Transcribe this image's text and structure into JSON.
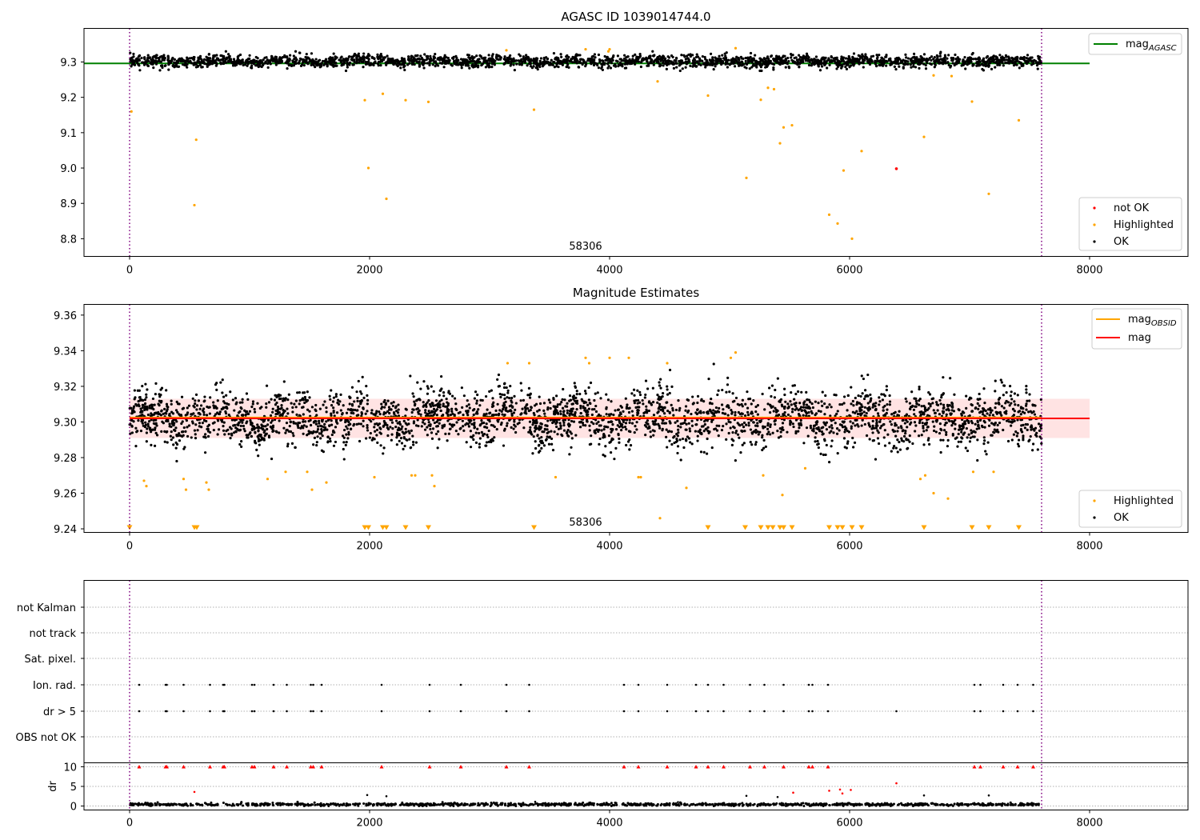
{
  "chart_data": [
    {
      "type": "scatter",
      "title": "AGASC ID 1039014744.0",
      "annotation": "58306",
      "xlim": [
        -380,
        8820
      ],
      "ylim": [
        8.75,
        9.395
      ],
      "xticks": [
        "0",
        "2000",
        "4000",
        "6000",
        "8000"
      ],
      "yticks": [
        "8.8",
        "8.9",
        "9.0",
        "9.1",
        "9.2",
        "9.3"
      ],
      "vlines_x": [
        0,
        7600
      ],
      "series": [
        {
          "name": "mag_AGASC",
          "kind": "line",
          "color": "#008000",
          "y": 9.296,
          "x_range": [
            -380,
            8000
          ]
        },
        {
          "name": "not OK",
          "kind": "points",
          "color": "#ff0000",
          "x": [
            6390
          ],
          "y": [
            8.998
          ]
        },
        {
          "name": "Highlighted",
          "kind": "points",
          "color": "#ffa500",
          "x": [
            15,
            540,
            555,
            1960,
            1990,
            2110,
            2140,
            2300,
            2490,
            3370,
            4400,
            4820,
            5140,
            5260,
            5320,
            5370,
            5420,
            5450,
            5520,
            5830,
            5900,
            5950,
            6020,
            6100,
            6620,
            7020,
            7160,
            7410,
            3140,
            3800,
            4000,
            5050,
            3990,
            6850,
            6700
          ],
          "y": [
            9.16,
            8.895,
            9.08,
            9.192,
            9.0,
            9.21,
            8.913,
            9.192,
            9.187,
            9.165,
            9.245,
            9.205,
            8.972,
            9.193,
            9.227,
            9.223,
            9.07,
            9.115,
            9.121,
            8.868,
            8.843,
            8.993,
            8.8,
            9.048,
            9.088,
            9.188,
            8.927,
            9.135,
            9.333,
            9.336,
            9.336,
            9.339,
            9.33,
            9.26,
            9.262
          ]
        },
        {
          "name": "OK",
          "kind": "points",
          "color": "#000000",
          "x_range": [
            0,
            7600
          ],
          "y_center": 9.302,
          "y_band": [
            9.275,
            9.33
          ]
        }
      ],
      "legend": [
        {
          "text": "mag",
          "sub": "AGASC",
          "color": "#008000",
          "marker": "line"
        },
        {
          "text": "not OK",
          "color": "#ff0000",
          "marker": "dot"
        },
        {
          "text": "Highlighted",
          "color": "#ffa500",
          "marker": "dot"
        },
        {
          "text": "OK",
          "color": "#000000",
          "marker": "dot"
        }
      ]
    },
    {
      "type": "scatter",
      "title": "Magnitude Estimates",
      "annotation": "58306",
      "xlim": [
        -380,
        8820
      ],
      "ylim": [
        9.238,
        9.366
      ],
      "xticks": [
        "0",
        "2000",
        "4000",
        "6000",
        "8000"
      ],
      "yticks": [
        "9.24",
        "9.26",
        "9.28",
        "9.30",
        "9.32",
        "9.34",
        "9.36"
      ],
      "vlines_x": [
        0,
        7600
      ],
      "band": {
        "y_low": 9.291,
        "y_high": 9.313,
        "x_range": [
          0,
          8000
        ],
        "color": "#ff9999"
      },
      "series": [
        {
          "name": "mag_OBSID",
          "kind": "line",
          "color": "#ffa500",
          "y": 9.3025,
          "x_range": [
            0,
            7600
          ]
        },
        {
          "name": "mag",
          "kind": "line",
          "color": "#ff0000",
          "y": 9.302,
          "x_range": [
            0,
            8000
          ]
        },
        {
          "name": "Highlighted",
          "kind": "points",
          "color": "#ffa500",
          "x": [
            120,
            140,
            450,
            470,
            640,
            660,
            1150,
            1300,
            1480,
            1520,
            1640,
            2040,
            2350,
            2380,
            2520,
            2540,
            3150,
            3330,
            3550,
            3800,
            3830,
            4000,
            4160,
            4240,
            4420,
            4480,
            4640,
            5010,
            5050,
            5280,
            5440,
            5630,
            6590,
            6630,
            6700,
            6820,
            7030,
            7200,
            4260
          ],
          "y": [
            9.267,
            9.264,
            9.268,
            9.262,
            9.266,
            9.262,
            9.268,
            9.272,
            9.272,
            9.262,
            9.266,
            9.269,
            9.27,
            9.27,
            9.27,
            9.264,
            9.333,
            9.333,
            9.269,
            9.336,
            9.333,
            9.336,
            9.336,
            9.269,
            9.246,
            9.333,
            9.263,
            9.336,
            9.339,
            9.27,
            9.259,
            9.274,
            9.268,
            9.27,
            9.26,
            9.257,
            9.272,
            9.272,
            9.269
          ]
        },
        {
          "name": "OK",
          "kind": "points",
          "color": "#000000",
          "x_range": [
            0,
            7600
          ],
          "y_center": 9.302,
          "y_band": [
            9.272,
            9.333
          ]
        }
      ],
      "offscale_x": [
        0,
        540,
        560,
        1960,
        1990,
        2110,
        2140,
        2300,
        2490,
        3370,
        4820,
        5130,
        5260,
        5320,
        5360,
        5420,
        5450,
        5520,
        5830,
        5900,
        5940,
        6020,
        6100,
        6620,
        7020,
        7160,
        7410
      ],
      "legend_top": [
        {
          "text": "mag",
          "sub": "OBSID",
          "color": "#ffa500",
          "marker": "line"
        },
        {
          "text": "mag",
          "color": "#ff0000",
          "marker": "line"
        }
      ],
      "legend_bottom": [
        {
          "text": "Highlighted",
          "color": "#ffa500",
          "marker": "dot"
        },
        {
          "text": "OK",
          "color": "#000000",
          "marker": "dot"
        }
      ]
    },
    {
      "type": "scatter",
      "xlim": [
        -380,
        8820
      ],
      "xticks": [
        "0",
        "2000",
        "4000",
        "6000",
        "8000"
      ],
      "vlines_x": [
        0,
        7600
      ],
      "flag_rows": [
        "not Kalman",
        "not track",
        "Sat. pixel.",
        "Ion. rad.",
        "dr > 5",
        "OBS not OK"
      ],
      "flags": {
        "Ion. rad.": [
          80,
          300,
          310,
          450,
          670,
          780,
          790,
          1020,
          1040,
          1200,
          1310,
          1510,
          1530,
          1600,
          2100,
          2500,
          2760,
          3140,
          3330,
          4120,
          4240,
          4480,
          4720,
          4820,
          4950,
          5170,
          5290,
          5450,
          5660,
          5690,
          5820,
          7040,
          7090,
          7280,
          7400,
          7530
        ],
        "dr > 5": [
          80,
          300,
          310,
          450,
          670,
          780,
          790,
          1020,
          1040,
          1200,
          1310,
          1510,
          1530,
          1600,
          2100,
          2500,
          2760,
          3140,
          3330,
          4120,
          4240,
          4480,
          4720,
          4820,
          4950,
          5170,
          5290,
          5450,
          5660,
          5690,
          5820,
          6390,
          7040,
          7090,
          7280,
          7400,
          7530
        ]
      },
      "dr": {
        "ylabel": "dr",
        "yticks": [
          "0",
          "5",
          "10"
        ],
        "ylim": [
          -0.5,
          10.5
        ],
        "clip_at": 10,
        "clipped_x": [
          80,
          300,
          310,
          450,
          670,
          780,
          790,
          1020,
          1040,
          1200,
          1310,
          1510,
          1530,
          1600,
          2100,
          2500,
          2760,
          3140,
          3330,
          4120,
          4240,
          4480,
          4720,
          4820,
          4950,
          5170,
          5290,
          5450,
          5660,
          5690,
          5820,
          7040,
          7090,
          7280,
          7400,
          7530
        ],
        "red_x": [
          540,
          5530,
          5830,
          5920,
          5940,
          6010,
          6390
        ],
        "red_y": [
          3.6,
          3.4,
          3.9,
          4.2,
          3.2,
          4.1,
          5.8
        ],
        "black_x": [
          1980,
          2140,
          5140,
          5400,
          6620,
          7160,
          3380,
          4570
        ],
        "black_y": [
          2.8,
          2.5,
          2.6,
          2.3,
          2.7,
          2.7,
          1.1,
          1.0
        ],
        "base_y": 0.4
      }
    }
  ]
}
